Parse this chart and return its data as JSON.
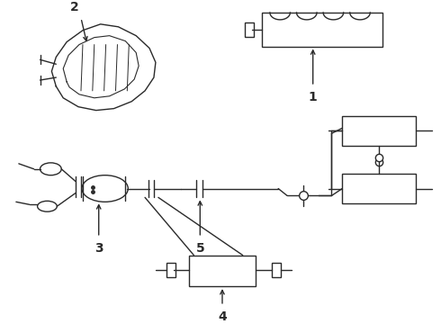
{
  "bg_color": "#ffffff",
  "line_color": "#2a2a2a",
  "lw": 1.0,
  "label_fontsize": 10,
  "fig_w": 4.9,
  "fig_h": 3.6,
  "dpi": 100
}
